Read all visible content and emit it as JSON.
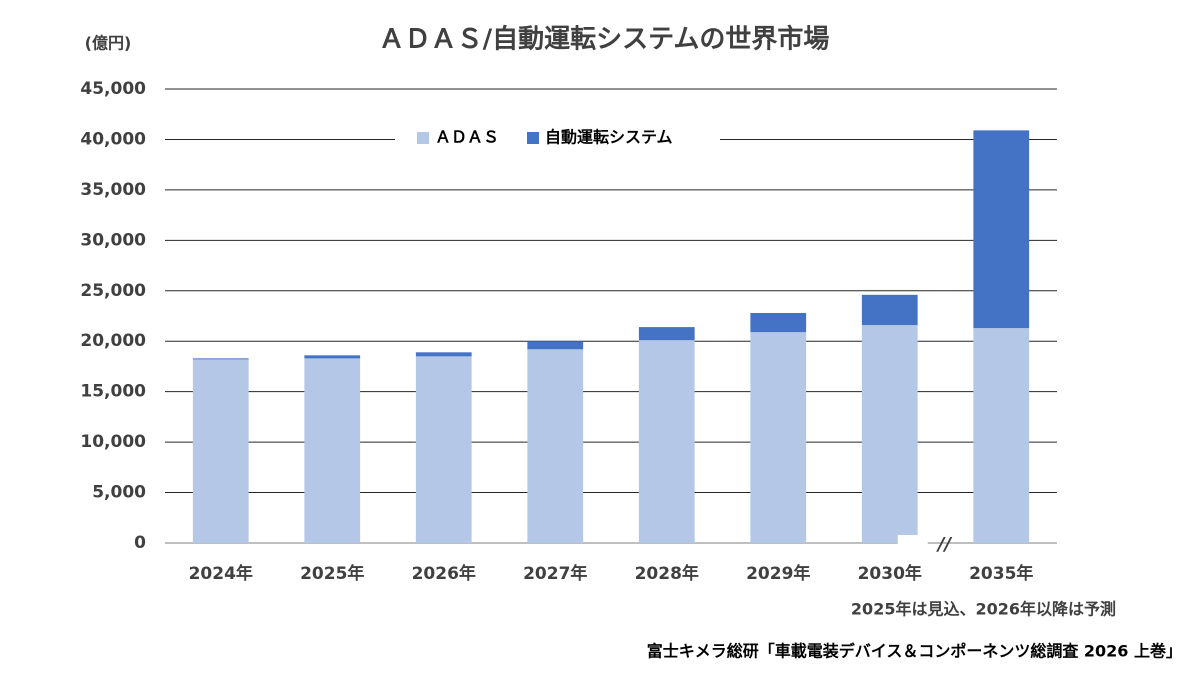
{
  "chart_data": {
    "type": "stacked-bar",
    "title": "ＡＤＡＳ/自動運転システムの世界市場",
    "y_unit": "(億円)",
    "categories": [
      "2024年",
      "2025年",
      "2026年",
      "2027年",
      "2028年",
      "2029年",
      "2030年",
      "2035年"
    ],
    "series": [
      {
        "name": "ＡＤＡＳ",
        "color": "#b4c7e7",
        "values": [
          18200,
          18300,
          18500,
          19200,
          20100,
          20900,
          21600,
          21300
        ]
      },
      {
        "name": "自動運転システム",
        "color": "#4472c4",
        "values": [
          100,
          300,
          400,
          800,
          1300,
          1900,
          3000,
          19600
        ]
      }
    ],
    "ylim": [
      0,
      45000
    ],
    "yticks": [
      0,
      {
        "value": 5000,
        "label": "5,000"
      },
      {
        "value": 10000,
        "label": "10,000"
      },
      {
        "value": 15000,
        "label": "15,000"
      },
      {
        "value": 20000,
        "label": "20,000"
      },
      {
        "value": 25000,
        "label": "25,000"
      },
      {
        "value": 30000,
        "label": "30,000"
      },
      {
        "value": 35000,
        "label": "35,000"
      },
      {
        "value": 40000,
        "label": "40,000"
      },
      {
        "value": 45000,
        "label": "45,000"
      }
    ],
    "grid": true,
    "legend": "top",
    "axis_break": "//",
    "note": "2025年は見込、2026年以降は予測",
    "source": "富士キメラ総研「車載電装デバイス＆コンポーネンツ総調査 2026 上巻」"
  }
}
